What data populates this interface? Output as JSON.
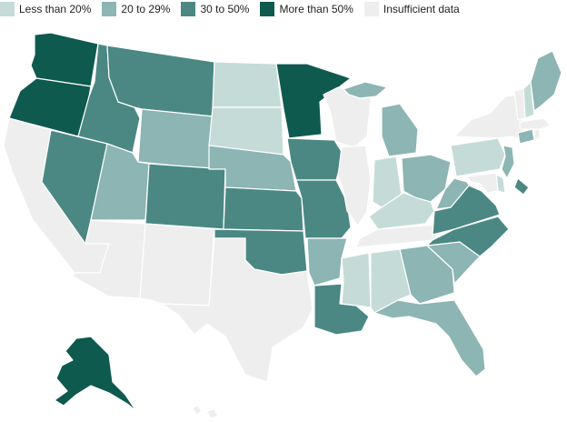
{
  "legend": [
    {
      "key": "lt20",
      "label": "Less than 20%",
      "color": "#c5dbd8"
    },
    {
      "key": "r20_29",
      "label": "20 to 29%",
      "color": "#8cb5b3"
    },
    {
      "key": "r30_50",
      "label": "30 to 50%",
      "color": "#4b8883"
    },
    {
      "key": "gt50",
      "label": "More than 50%",
      "color": "#0e5a4f"
    },
    {
      "key": "insufficient",
      "label": "Insufficient data",
      "color": "#eeeeee"
    }
  ],
  "states": [
    {
      "id": "WA",
      "category": "gt50"
    },
    {
      "id": "OR",
      "category": "gt50"
    },
    {
      "id": "CA",
      "category": "insufficient"
    },
    {
      "id": "NV",
      "category": "r30_50"
    },
    {
      "id": "ID",
      "category": "r30_50"
    },
    {
      "id": "MT",
      "category": "r30_50"
    },
    {
      "id": "WY",
      "category": "r20_29"
    },
    {
      "id": "UT",
      "category": "r20_29"
    },
    {
      "id": "CO",
      "category": "r30_50"
    },
    {
      "id": "AZ",
      "category": "insufficient"
    },
    {
      "id": "NM",
      "category": "insufficient"
    },
    {
      "id": "ND",
      "category": "lt20"
    },
    {
      "id": "SD",
      "category": "lt20"
    },
    {
      "id": "NE",
      "category": "r20_29"
    },
    {
      "id": "KS",
      "category": "r30_50"
    },
    {
      "id": "OK",
      "category": "r30_50"
    },
    {
      "id": "TX",
      "category": "insufficient"
    },
    {
      "id": "MN",
      "category": "gt50"
    },
    {
      "id": "IA",
      "category": "r30_50"
    },
    {
      "id": "MO",
      "category": "r30_50"
    },
    {
      "id": "AR",
      "category": "r20_29"
    },
    {
      "id": "LA",
      "category": "r30_50"
    },
    {
      "id": "WI",
      "category": "insufficient"
    },
    {
      "id": "IL",
      "category": "insufficient"
    },
    {
      "id": "MI",
      "category": "r20_29"
    },
    {
      "id": "IN",
      "category": "lt20"
    },
    {
      "id": "OH",
      "category": "r20_29"
    },
    {
      "id": "KY",
      "category": "lt20"
    },
    {
      "id": "TN",
      "category": "insufficient"
    },
    {
      "id": "MS",
      "category": "lt20"
    },
    {
      "id": "AL",
      "category": "lt20"
    },
    {
      "id": "GA",
      "category": "r20_29"
    },
    {
      "id": "FL",
      "category": "r20_29"
    },
    {
      "id": "SC",
      "category": "r20_29"
    },
    {
      "id": "NC",
      "category": "r30_50"
    },
    {
      "id": "VA",
      "category": "r30_50"
    },
    {
      "id": "WV",
      "category": "r20_29"
    },
    {
      "id": "PA",
      "category": "lt20"
    },
    {
      "id": "NY",
      "category": "insufficient"
    },
    {
      "id": "NJ",
      "category": "r20_29"
    },
    {
      "id": "DE",
      "category": "lt20"
    },
    {
      "id": "MD",
      "category": "insufficient"
    },
    {
      "id": "DC",
      "category": "r30_50"
    },
    {
      "id": "CT",
      "category": "r20_29"
    },
    {
      "id": "RI",
      "category": "insufficient"
    },
    {
      "id": "MA",
      "category": "insufficient"
    },
    {
      "id": "VT",
      "category": "insufficient"
    },
    {
      "id": "NH",
      "category": "lt20"
    },
    {
      "id": "ME",
      "category": "r20_29"
    },
    {
      "id": "AK",
      "category": "gt50"
    },
    {
      "id": "HI",
      "category": "insufficient"
    }
  ]
}
